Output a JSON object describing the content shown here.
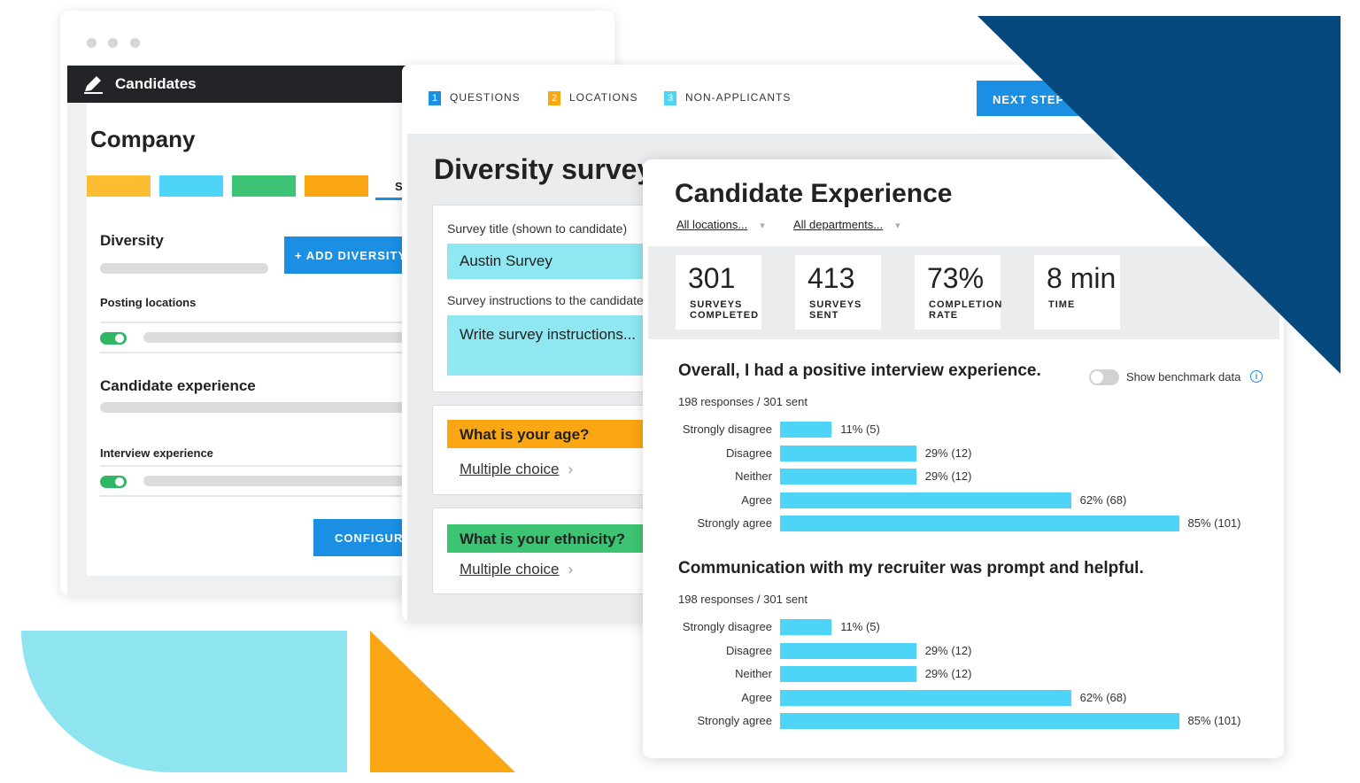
{
  "colors": {
    "navy": "#05497e",
    "cyan": "#8fe5ef",
    "orange": "#fba613",
    "blue": "#1a8fe3",
    "bar": "#4dd4f7",
    "green": "#2fb765"
  },
  "window1": {
    "title": "Candidates",
    "heading": "Company",
    "tab_fragment": "S",
    "swatches": [
      "#fbbd32",
      "#4dd4f7",
      "#3cc373",
      "#fba613"
    ],
    "diversity_label": "Diversity",
    "add_diversity_button": "+ ADD DIVERSITY",
    "posting_locations_label": "Posting locations",
    "candidate_experience_label": "Candidate experience",
    "interview_experience_label": "Interview experience",
    "configure_button": "CONFIGURE"
  },
  "window2": {
    "steps": [
      {
        "num": "1",
        "label": "QUESTIONS",
        "color": "#1a8fe3"
      },
      {
        "num": "2",
        "label": "LOCATIONS",
        "color": "#fba613"
      },
      {
        "num": "3",
        "label": "NON-APPLICANTS",
        "color": "#4dd4f7"
      }
    ],
    "next_button": "NEXT STEP",
    "title": "Diversity survey",
    "survey_title_label": "Survey title (shown to candidate)",
    "survey_title_value": "Austin Survey",
    "instructions_label": "Survey instructions to the candidate",
    "instructions_placeholder": "Write survey instructions...",
    "questions": [
      {
        "text": "What is your age?",
        "type": "Multiple choice",
        "color": "#fba613"
      },
      {
        "text": "What is your ethnicity?",
        "type": "Multiple choice",
        "color": "#3cc373"
      }
    ]
  },
  "window3": {
    "title": "Candidate Experience",
    "filters": [
      "All locations...",
      "All departments..."
    ],
    "stats": [
      {
        "value": "301",
        "label1": "SURVEYS",
        "label2": "COMPLETED"
      },
      {
        "value": "413",
        "label1": "SURVEYS",
        "label2": "SENT"
      },
      {
        "value": "73%",
        "label1": "COMPLETION",
        "label2": "RATE"
      },
      {
        "value": "8 min",
        "label1": "TIME",
        "label2": ""
      }
    ],
    "benchmark_label": "Show benchmark data",
    "info_glyph": "i"
  },
  "chart_data": [
    {
      "type": "bar",
      "orientation": "horizontal",
      "title": "Overall, I had a positive interview experience.",
      "subtitle": "198 responses / 301 sent",
      "categories": [
        "Strongly disagree",
        "Disagree",
        "Neither",
        "Agree",
        "Strongly agree"
      ],
      "values": [
        11,
        29,
        29,
        62,
        85
      ],
      "counts": [
        5,
        12,
        12,
        68,
        101
      ],
      "labels": [
        "11% (5)",
        "29% (12)",
        "29% (12)",
        "62% (68)",
        "85% (101)"
      ],
      "unit": "%",
      "xlim": [
        0,
        100
      ]
    },
    {
      "type": "bar",
      "orientation": "horizontal",
      "title": "Communication with my recruiter was prompt and helpful.",
      "subtitle": "198 responses / 301 sent",
      "categories": [
        "Strongly disagree",
        "Disagree",
        "Neither",
        "Agree",
        "Strongly agree"
      ],
      "values": [
        11,
        29,
        29,
        62,
        85
      ],
      "counts": [
        5,
        12,
        12,
        68,
        101
      ],
      "labels": [
        "11% (5)",
        "29% (12)",
        "29% (12)",
        "62% (68)",
        "85% (101)"
      ],
      "unit": "%",
      "xlim": [
        0,
        100
      ]
    }
  ]
}
